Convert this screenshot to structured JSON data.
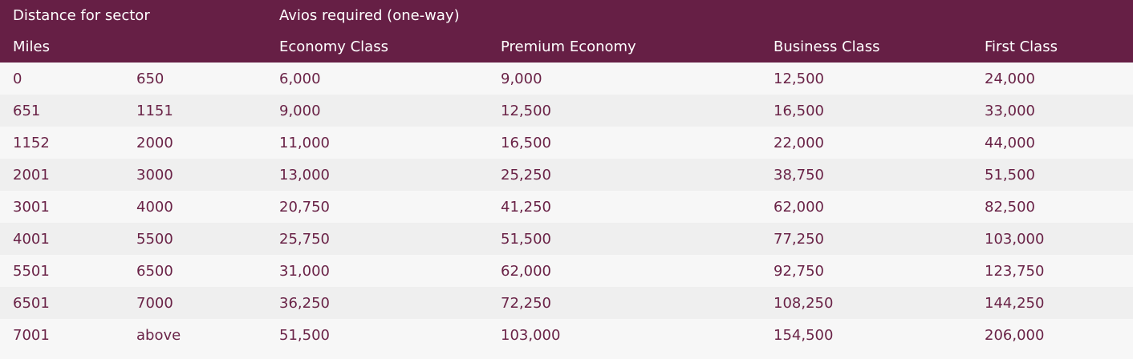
{
  "header": {
    "distance_label": "Distance for sector",
    "avios_label": "Avios required (one-way)",
    "miles_label": "Miles",
    "columns": [
      "Economy Class",
      "Premium Economy",
      "Business Class",
      "First Class"
    ]
  },
  "rows": [
    [
      "0",
      "650",
      "6,000",
      "9,000",
      "12,500",
      "24,000"
    ],
    [
      "651",
      "1151",
      "9,000",
      "12,500",
      "16,500",
      "33,000"
    ],
    [
      "1152",
      "2000",
      "11,000",
      "16,500",
      "22,000",
      "44,000"
    ],
    [
      "2001",
      "3000",
      "13,000",
      "25,250",
      "38,750",
      "51,500"
    ],
    [
      "3001",
      "4000",
      "20,750",
      "41,250",
      "62,000",
      "82,500"
    ],
    [
      "4001",
      "5500",
      "25,750",
      "51,500",
      "77,250",
      "103,000"
    ],
    [
      "5501",
      "6500",
      "31,000",
      "62,000",
      "92,750",
      "123,750"
    ],
    [
      "6501",
      "7000",
      "36,250",
      "72,250",
      "108,250",
      "144,250"
    ],
    [
      "7001",
      "above",
      "51,500",
      "103,000",
      "154,500",
      "206,000"
    ]
  ],
  "colors": {
    "header_bg": "#661f45",
    "text": "#6a2347"
  }
}
